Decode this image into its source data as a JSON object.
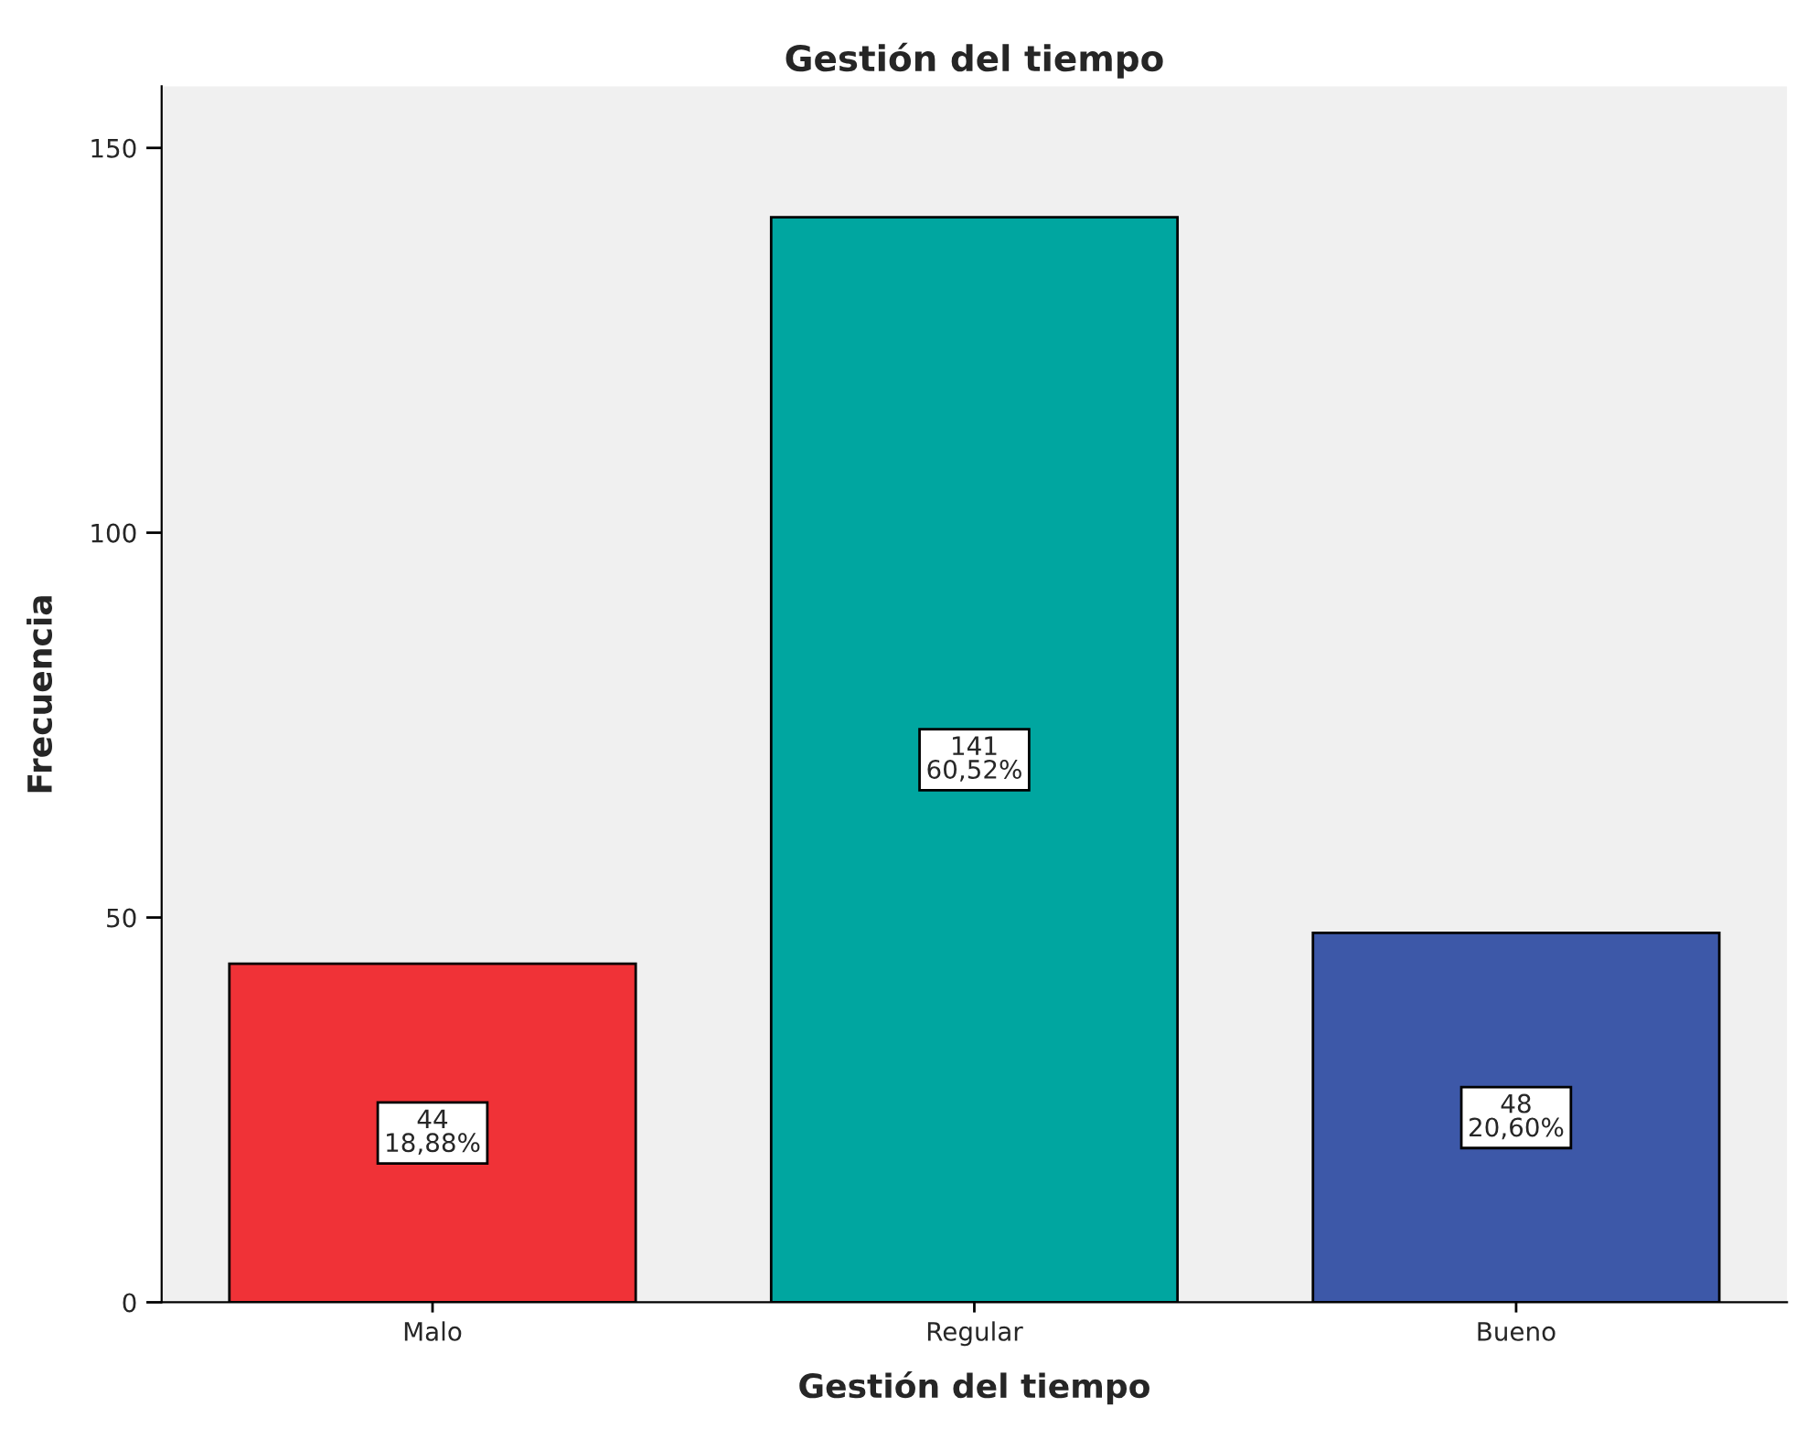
{
  "chart_data": {
    "type": "bar",
    "title": "Gestión del tiempo",
    "xlabel": "Gestión del tiempo",
    "ylabel": "Frecuencia",
    "categories": [
      "Malo",
      "Regular",
      "Bueno"
    ],
    "values": [
      44,
      141,
      48
    ],
    "colors": [
      "#f03237",
      "#00a6a0",
      "#3d58a8"
    ],
    "value_labels": [
      "44\n18,88%",
      "141\n60,52%",
      "48\n20,60%"
    ],
    "ylim": [
      0,
      158
    ],
    "yticks": [
      0,
      50,
      100,
      150
    ],
    "grid": false,
    "legend": false
  }
}
